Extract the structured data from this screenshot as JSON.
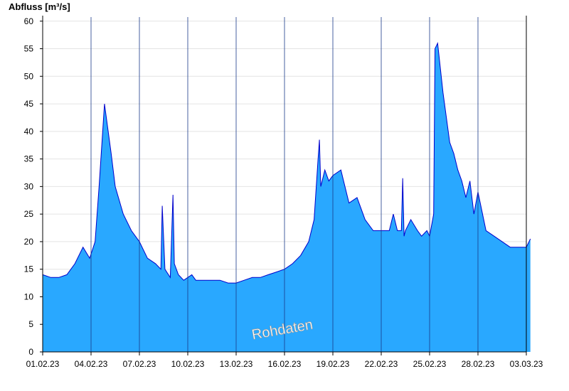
{
  "chart_data": {
    "type": "area",
    "ylabel": "Abfluss [m³/s]",
    "watermark": "Rohdaten",
    "ylim": [
      0,
      61
    ],
    "xlim": [
      "2023-02-01",
      "2023-03-03"
    ],
    "grid": true,
    "y_ticks": [
      0,
      5,
      10,
      15,
      20,
      25,
      30,
      35,
      40,
      45,
      50,
      55,
      60
    ],
    "x_ticks": [
      {
        "date": "2023-02-01",
        "label": "01.02.23"
      },
      {
        "date": "2023-02-04",
        "label": "04.02.23"
      },
      {
        "date": "2023-02-07",
        "label": "07.02.23"
      },
      {
        "date": "2023-02-10",
        "label": "10.02.23"
      },
      {
        "date": "2023-02-13",
        "label": "13.02.23"
      },
      {
        "date": "2023-02-16",
        "label": "16.02.23"
      },
      {
        "date": "2023-02-19",
        "label": "19.02.23"
      },
      {
        "date": "2023-02-22",
        "label": "22.02.23"
      },
      {
        "date": "2023-02-25",
        "label": "25.02.23"
      },
      {
        "date": "2023-02-28",
        "label": "28.02.23"
      },
      {
        "date": "2023-03-03",
        "label": "03.03.23"
      }
    ],
    "colors": {
      "fill": "#29a8ff",
      "line": "#0000cc",
      "grid": "#e4e4e4",
      "day_line": "#1a3a8a",
      "axis": "#000000"
    },
    "series": [
      {
        "x": [
          "2023-02-01 00:00",
          "2023-02-01 12:00",
          "2023-02-02 00:00",
          "2023-02-02 12:00",
          "2023-02-03 00:00",
          "2023-02-03 12:00",
          "2023-02-03 22:00",
          "2023-02-04 06:00",
          "2023-02-04 12:00",
          "2023-02-04 20:00",
          "2023-02-05 06:00",
          "2023-02-05 12:00",
          "2023-02-06 00:00",
          "2023-02-06 12:00",
          "2023-02-07 00:00",
          "2023-02-07 12:00",
          "2023-02-08 00:00",
          "2023-02-08 08:00",
          "2023-02-08 10:00",
          "2023-02-08 14:00",
          "2023-02-08 22:00",
          "2023-02-09 02:00",
          "2023-02-09 04:00",
          "2023-02-09 10:00",
          "2023-02-09 18:00",
          "2023-02-10 06:00",
          "2023-02-10 12:00",
          "2023-02-11 00:00",
          "2023-02-11 12:00",
          "2023-02-12 00:00",
          "2023-02-12 12:00",
          "2023-02-13 00:00",
          "2023-02-13 12:00",
          "2023-02-14 00:00",
          "2023-02-14 12:00",
          "2023-02-15 00:00",
          "2023-02-15 12:00",
          "2023-02-16 00:00",
          "2023-02-16 12:00",
          "2023-02-17 00:00",
          "2023-02-17 12:00",
          "2023-02-17 20:00",
          "2023-02-18 02:00",
          "2023-02-18 04:00",
          "2023-02-18 06:00",
          "2023-02-18 12:00",
          "2023-02-18 18:00",
          "2023-02-19 00:00",
          "2023-02-19 12:00",
          "2023-02-19 18:00",
          "2023-02-20 00:00",
          "2023-02-20 12:00",
          "2023-02-21 00:00",
          "2023-02-21 06:00",
          "2023-02-21 12:00",
          "2023-02-22 00:00",
          "2023-02-22 12:00",
          "2023-02-22 18:00",
          "2023-02-23 00:00",
          "2023-02-23 06:00",
          "2023-02-23 08:00",
          "2023-02-23 10:00",
          "2023-02-23 12:00",
          "2023-02-23 20:00",
          "2023-02-24 06:00",
          "2023-02-24 12:00",
          "2023-02-24 20:00",
          "2023-02-25 00:00",
          "2023-02-25 06:00",
          "2023-02-25 08:00",
          "2023-02-25 12:00",
          "2023-02-25 20:00",
          "2023-02-26 06:00",
          "2023-02-26 12:00",
          "2023-02-26 18:00",
          "2023-02-27 00:00",
          "2023-02-27 06:00",
          "2023-02-27 12:00",
          "2023-02-27 18:00",
          "2023-02-28 00:00",
          "2023-02-28 12:00",
          "2023-03-01 00:00",
          "2023-03-01 12:00",
          "2023-03-02 00:00",
          "2023-03-02 12:00",
          "2023-03-03 00:00",
          "2023-03-03 06:00"
        ],
        "values": [
          14,
          13.5,
          13.5,
          14,
          16,
          19,
          17,
          20,
          30,
          45,
          36,
          30,
          25,
          22,
          20,
          17,
          16,
          15,
          26.5,
          15,
          13.5,
          28.5,
          16,
          14,
          13,
          14,
          13,
          13,
          13,
          13,
          12.5,
          12.5,
          13,
          13.5,
          13.5,
          14,
          14.5,
          15,
          16,
          17.5,
          20,
          24,
          35,
          38.5,
          30,
          33,
          31,
          32,
          33,
          30,
          27,
          28,
          24,
          23,
          22,
          22,
          22,
          25,
          22,
          22,
          31.5,
          21,
          22,
          24,
          22,
          21,
          22,
          21,
          25,
          55,
          56,
          47,
          38,
          36,
          33,
          31,
          28,
          31,
          25,
          29,
          22,
          21,
          20,
          19,
          19,
          19,
          20.5
        ]
      }
    ]
  }
}
